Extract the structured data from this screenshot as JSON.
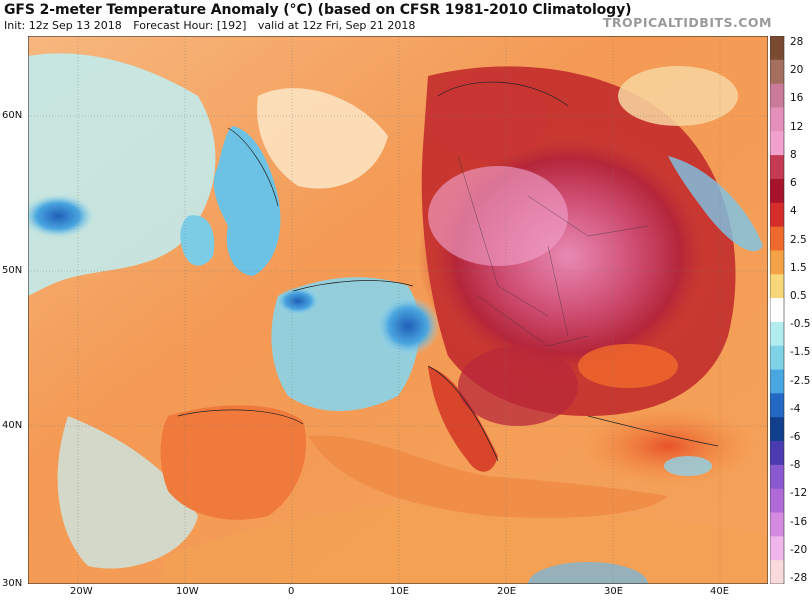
{
  "header": {
    "title": "GFS 2-meter Temperature Anomaly (°C) (based on CFSR 1981-2010 Climatology)",
    "init": "Init: 12z Sep 13 2018",
    "forecast_hour": "Forecast Hour: [192]",
    "valid": "valid at 12z Fri, Sep 21 2018",
    "brand": "TROPICALTIDBITS.COM"
  },
  "map": {
    "lat_labels": [
      "60N",
      "50N",
      "40N",
      "30N"
    ],
    "lon_labels": [
      "20W",
      "10W",
      "0",
      "10E",
      "20E",
      "30E",
      "40E"
    ]
  },
  "colorbar": {
    "labels": [
      "28",
      "20",
      "16",
      "12",
      "8",
      "6",
      "4",
      "2.5",
      "1.5",
      "0.5",
      "-0.5",
      "-1.5",
      "-2.5",
      "-4",
      "-6",
      "-8",
      "-12",
      "-16",
      "-20",
      "-28"
    ],
    "colors": [
      "#7a4a32",
      "#a46f5e",
      "#c97b99",
      "#e58fbb",
      "#f2a1cf",
      "#c43a52",
      "#a6132a",
      "#d62c2c",
      "#ee6a2c",
      "#f5a146",
      "#f8d77a",
      "#ffffff",
      "#b3ecef",
      "#7fd1e6",
      "#4aa6e0",
      "#2268c4",
      "#103f8e",
      "#4a3cb0",
      "#8a58cf",
      "#b06ad8",
      "#d48ae0",
      "#f0b6ec",
      "#f8dada"
    ]
  }
}
